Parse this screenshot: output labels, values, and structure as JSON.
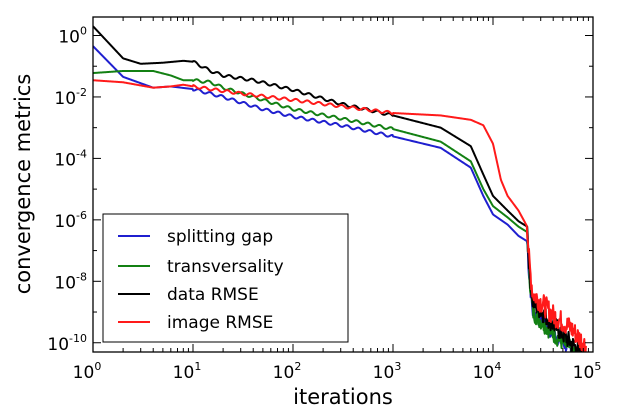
{
  "chart_data": {
    "type": "line",
    "title": "",
    "xlabel": "iterations",
    "ylabel": "convergence metrics",
    "xscale": "log",
    "yscale": "log",
    "xlim": [
      1,
      100000
    ],
    "ylim": [
      5e-11,
      4
    ],
    "grid": false,
    "legend_position": "lower-left",
    "x_ticks": [
      {
        "base": "10",
        "exp": "0"
      },
      {
        "base": "10",
        "exp": "1"
      },
      {
        "base": "10",
        "exp": "2"
      },
      {
        "base": "10",
        "exp": "3"
      },
      {
        "base": "10",
        "exp": "4"
      },
      {
        "base": "10",
        "exp": "5"
      }
    ],
    "y_ticks": [
      {
        "base": "10",
        "exp": "0"
      },
      {
        "base": "10",
        "exp": "-2"
      },
      {
        "base": "10",
        "exp": "-4"
      },
      {
        "base": "10",
        "exp": "-6"
      },
      {
        "base": "10",
        "exp": "-8"
      },
      {
        "base": "10",
        "exp": "-10"
      }
    ],
    "series": [
      {
        "name": "splitting gap",
        "color": "#1f1fcf",
        "noise_from_x": 22000,
        "noise_amp_decades": 0.25,
        "points": [
          [
            1,
            0.45
          ],
          [
            2,
            0.045
          ],
          [
            4,
            0.02
          ],
          [
            6,
            0.022
          ],
          [
            10,
            0.018
          ],
          [
            20,
            0.01
          ],
          [
            50,
            0.004
          ],
          [
            100,
            0.0023
          ],
          [
            300,
            0.0012
          ],
          [
            1000,
            0.00052
          ],
          [
            3000,
            0.00022
          ],
          [
            6000,
            5e-05
          ],
          [
            8000,
            6e-06
          ],
          [
            10000,
            1.5e-06
          ],
          [
            14000,
            7e-07
          ],
          [
            18000,
            3e-07
          ],
          [
            22000,
            2e-07
          ],
          [
            23000,
            1.5e-08
          ],
          [
            25000,
            1e-09
          ],
          [
            40000,
            2e-10
          ],
          [
            60000,
            6e-11
          ],
          [
            75000,
            3e-11
          ]
        ]
      },
      {
        "name": "transversality",
        "color": "#138013",
        "noise_from_x": 22000,
        "noise_amp_decades": 0.3,
        "points": [
          [
            1,
            0.06
          ],
          [
            2,
            0.07
          ],
          [
            4,
            0.07
          ],
          [
            6,
            0.05
          ],
          [
            8,
            0.035
          ],
          [
            10,
            0.035
          ],
          [
            15,
            0.03
          ],
          [
            20,
            0.02
          ],
          [
            50,
            0.008
          ],
          [
            100,
            0.004
          ],
          [
            300,
            0.002
          ],
          [
            1000,
            0.0009
          ],
          [
            3000,
            0.00035
          ],
          [
            6000,
            8e-05
          ],
          [
            8000,
            1e-05
          ],
          [
            10000,
            2.8e-06
          ],
          [
            14000,
            1.2e-06
          ],
          [
            18000,
            6e-07
          ],
          [
            22000,
            4e-07
          ],
          [
            23000,
            2e-08
          ],
          [
            25000,
            1e-09
          ],
          [
            40000,
            2e-10
          ],
          [
            60000,
            6e-11
          ],
          [
            78000,
            3e-11
          ]
        ]
      },
      {
        "name": "data RMSE",
        "color": "#000000",
        "noise_from_x": 22000,
        "noise_amp_decades": 0.3,
        "points": [
          [
            1,
            2.0
          ],
          [
            2,
            0.18
          ],
          [
            3,
            0.12
          ],
          [
            5,
            0.13
          ],
          [
            8,
            0.15
          ],
          [
            10,
            0.14
          ],
          [
            15,
            0.07
          ],
          [
            20,
            0.05
          ],
          [
            40,
            0.035
          ],
          [
            100,
            0.017
          ],
          [
            300,
            0.006
          ],
          [
            1000,
            0.0025
          ],
          [
            3000,
            0.001
          ],
          [
            6000,
            0.00025
          ],
          [
            8000,
            3e-05
          ],
          [
            10000,
            6e-06
          ],
          [
            14000,
            2e-06
          ],
          [
            18000,
            9e-07
          ],
          [
            22000,
            6e-07
          ],
          [
            23000,
            3e-08
          ],
          [
            25000,
            2e-09
          ],
          [
            40000,
            4e-10
          ],
          [
            60000,
            1e-10
          ],
          [
            80000,
            4e-11
          ]
        ]
      },
      {
        "name": "image RMSE",
        "color": "#ff1a1a",
        "noise_from_x": 22000,
        "noise_amp_decades": 0.35,
        "points": [
          [
            1,
            0.035
          ],
          [
            2,
            0.03
          ],
          [
            4,
            0.02
          ],
          [
            6,
            0.022
          ],
          [
            8,
            0.025
          ],
          [
            10,
            0.022
          ],
          [
            15,
            0.018
          ],
          [
            30,
            0.013
          ],
          [
            100,
            0.008
          ],
          [
            300,
            0.005
          ],
          [
            1000,
            0.003
          ],
          [
            3000,
            0.0025
          ],
          [
            6000,
            0.0018
          ],
          [
            8000,
            0.0012
          ],
          [
            10000,
            0.0003
          ],
          [
            12000,
            2e-05
          ],
          [
            14000,
            6e-06
          ],
          [
            18000,
            2e-06
          ],
          [
            22000,
            6e-07
          ],
          [
            23000,
            4e-08
          ],
          [
            25000,
            4e-09
          ],
          [
            40000,
            8e-10
          ],
          [
            60000,
            3e-10
          ],
          [
            85000,
            8e-11
          ]
        ]
      }
    ]
  }
}
